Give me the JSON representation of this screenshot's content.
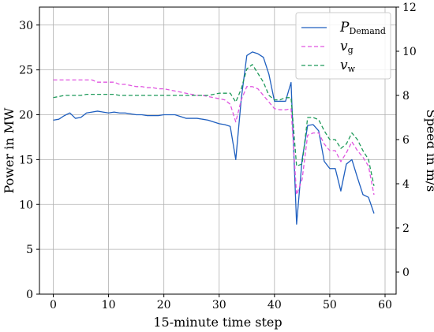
{
  "chart_data": {
    "type": "line",
    "xlabel": "15-minute time step",
    "ylabel_left": "Power in MW",
    "ylabel_right": "Speed in m/s",
    "xlim": [
      -2.5,
      62
    ],
    "ylim_left": [
      0,
      32
    ],
    "ylim_right": [
      -1,
      12
    ],
    "xticks": [
      0,
      10,
      20,
      30,
      40,
      50,
      60
    ],
    "yticks_left": [
      0,
      5,
      10,
      15,
      20,
      25,
      30
    ],
    "yticks_right": [
      0,
      2,
      4,
      6,
      8,
      10,
      12
    ],
    "grid": true,
    "legend_position": "top-right",
    "x": [
      0,
      1,
      2,
      3,
      4,
      5,
      6,
      7,
      8,
      9,
      10,
      11,
      12,
      13,
      14,
      15,
      16,
      17,
      18,
      19,
      20,
      21,
      22,
      23,
      24,
      25,
      26,
      27,
      28,
      29,
      30,
      31,
      32,
      33,
      34,
      35,
      36,
      37,
      38,
      39,
      40,
      41,
      42,
      43,
      44,
      45,
      46,
      47,
      48,
      49,
      50,
      51,
      52,
      53,
      54,
      55,
      56,
      57,
      58,
      59
    ],
    "series": [
      {
        "name": "P_Demand",
        "name_main": "P",
        "name_sub": "Demand",
        "axis": "left",
        "color": "#1f5fbf",
        "dash": "solid",
        "values": [
          19.4,
          19.5,
          19.9,
          20.2,
          19.6,
          19.7,
          20.2,
          20.3,
          20.4,
          20.3,
          20.2,
          20.3,
          20.2,
          20.2,
          20.1,
          20.0,
          20.0,
          19.9,
          19.9,
          19.9,
          20.0,
          20.0,
          20.0,
          19.8,
          19.6,
          19.6,
          19.6,
          19.5,
          19.4,
          19.2,
          19.0,
          18.9,
          18.7,
          15.0,
          21.8,
          26.6,
          27.0,
          26.8,
          26.4,
          24.5,
          21.5,
          21.5,
          21.5,
          23.6,
          7.8,
          15.0,
          18.8,
          18.9,
          18.2,
          14.8,
          14.0,
          14.0,
          11.5,
          14.5,
          15.0,
          13.0,
          11.1,
          10.8,
          9.0,
          null
        ]
      },
      {
        "name": "v_g",
        "name_main": "v",
        "name_sub": "g",
        "axis": "right",
        "color": "#e055e0",
        "dash": "5,3",
        "values": [
          8.7,
          8.7,
          8.7,
          8.7,
          8.7,
          8.7,
          8.7,
          8.7,
          8.6,
          8.6,
          8.6,
          8.6,
          8.5,
          8.5,
          8.45,
          8.4,
          8.4,
          8.35,
          8.35,
          8.3,
          8.3,
          8.25,
          8.2,
          8.15,
          8.1,
          8.05,
          8.0,
          8.0,
          7.95,
          7.9,
          7.85,
          7.8,
          7.6,
          6.8,
          7.8,
          8.4,
          8.4,
          8.3,
          8.0,
          7.7,
          7.4,
          7.35,
          7.35,
          7.4,
          3.5,
          4.2,
          6.2,
          6.3,
          6.3,
          5.8,
          5.5,
          5.5,
          5.0,
          5.4,
          5.9,
          5.5,
          5.2,
          4.8,
          3.5,
          null
        ]
      },
      {
        "name": "v_w",
        "name_main": "v",
        "name_sub": "w",
        "axis": "right",
        "color": "#1f9a5a",
        "dash": "5,3",
        "values": [
          7.9,
          7.95,
          8.0,
          8.0,
          8.0,
          8.0,
          8.05,
          8.05,
          8.05,
          8.05,
          8.05,
          8.05,
          8.0,
          8.0,
          8.0,
          8.0,
          8.0,
          8.0,
          8.0,
          8.0,
          8.0,
          8.0,
          8.0,
          8.0,
          8.0,
          8.0,
          8.0,
          8.0,
          8.0,
          8.05,
          8.1,
          8.1,
          8.1,
          7.7,
          8.3,
          9.2,
          9.4,
          9.0,
          8.6,
          8.0,
          7.8,
          7.8,
          7.9,
          7.9,
          4.8,
          4.9,
          7.0,
          7.0,
          6.9,
          6.4,
          6.0,
          6.0,
          5.6,
          5.8,
          6.3,
          6.0,
          5.5,
          5.1,
          3.9,
          null
        ]
      }
    ]
  }
}
